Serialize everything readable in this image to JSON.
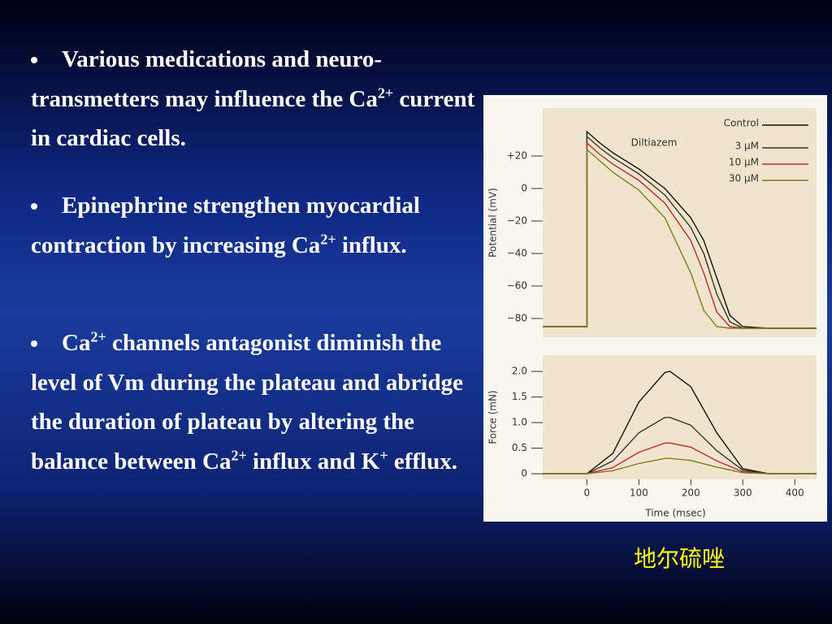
{
  "slide": {
    "bullets": [
      [
        {
          "text": "Various medications and neuro-transmetters may influence the Ca"
        },
        {
          "sup": "2+"
        },
        {
          "text": " current in cardiac cells."
        }
      ],
      [
        {
          "text": "Epinephrine strengthen myocardial contraction by increasing Ca"
        },
        {
          "sup": "2+"
        },
        {
          "text": " influx."
        }
      ],
      [
        {
          "text": "Ca"
        },
        {
          "sup": "2+"
        },
        {
          "text": " channels antagonist diminish the level of Vm during the plateau and abridge  the duration of plateau by altering the balance between Ca"
        },
        {
          "sup": "2+"
        },
        {
          "text": " influx and K"
        },
        {
          "sup": "+"
        },
        {
          "text": " efflux."
        }
      ]
    ],
    "caption": "地尔硫唑"
  },
  "chart_data": [
    {
      "type": "line",
      "ylabel": "Potential (mV)",
      "annotation": "Diltiazem",
      "x": [
        -85,
        0,
        0,
        25,
        50,
        100,
        150,
        200,
        225,
        250,
        275,
        300,
        350,
        442
      ],
      "xlim": [
        -85,
        442
      ],
      "ylim": [
        -91.5,
        49.5
      ],
      "yticks": [
        {
          "value": 20,
          "label": "+20"
        },
        0,
        {
          "value": -20,
          "label": "−20"
        },
        {
          "value": -40,
          "label": "−40"
        },
        {
          "value": -60,
          "label": "−60"
        },
        {
          "value": -80,
          "label": "−80"
        }
      ],
      "series": [
        {
          "name": "Control",
          "color": "#111111",
          "values": [
            -85,
            -85,
            35,
            28,
            22,
            12,
            0,
            -18,
            -32,
            -55,
            -78,
            -85,
            -86,
            -86
          ]
        },
        {
          "name": "3 μM",
          "color": "#333333",
          "values": [
            -85,
            -85,
            32,
            25,
            19,
            9,
            -4,
            -24,
            -40,
            -65,
            -82,
            -86,
            -86,
            -86
          ]
        },
        {
          "name": "10 μM",
          "color": "#c0282a",
          "values": [
            -85,
            -85,
            28,
            21,
            15,
            5,
            -9,
            -32,
            -52,
            -76,
            -85,
            -86,
            -86,
            -86
          ]
        },
        {
          "name": "30 μM",
          "color": "#7d7a1e",
          "values": [
            -85,
            -85,
            24,
            17,
            10,
            -1,
            -18,
            -52,
            -75,
            -85,
            -86,
            -86,
            -86,
            -86
          ]
        }
      ]
    },
    {
      "type": "line",
      "ylabel": "Force (mN)",
      "xlabel": "Time (msec)",
      "x": [
        -85,
        0,
        50,
        100,
        150,
        160,
        200,
        250,
        300,
        350,
        442
      ],
      "xlim": [
        -85,
        442
      ],
      "ylim": [
        -0.11,
        2.32
      ],
      "xticks": [
        0,
        100,
        200,
        300,
        400
      ],
      "yticks": [
        {
          "value": 2,
          "label": "2.0"
        },
        1.5,
        {
          "value": 1,
          "label": "1.0"
        },
        0.5,
        0
      ],
      "series": [
        {
          "color": "#111111",
          "values": [
            0,
            0,
            0.4,
            1.4,
            1.98,
            2.0,
            1.7,
            0.8,
            0.1,
            0,
            0
          ]
        },
        {
          "color": "#333333",
          "values": [
            0,
            0,
            0.25,
            0.8,
            1.1,
            1.1,
            0.95,
            0.45,
            0.07,
            0,
            0
          ]
        },
        {
          "color": "#c0282a",
          "values": [
            0,
            0,
            0.12,
            0.42,
            0.6,
            0.6,
            0.52,
            0.25,
            0.04,
            0,
            0
          ]
        },
        {
          "color": "#7d7a1e",
          "values": [
            0,
            0,
            0.06,
            0.2,
            0.3,
            0.3,
            0.26,
            0.13,
            0.02,
            0,
            0
          ]
        }
      ]
    }
  ]
}
